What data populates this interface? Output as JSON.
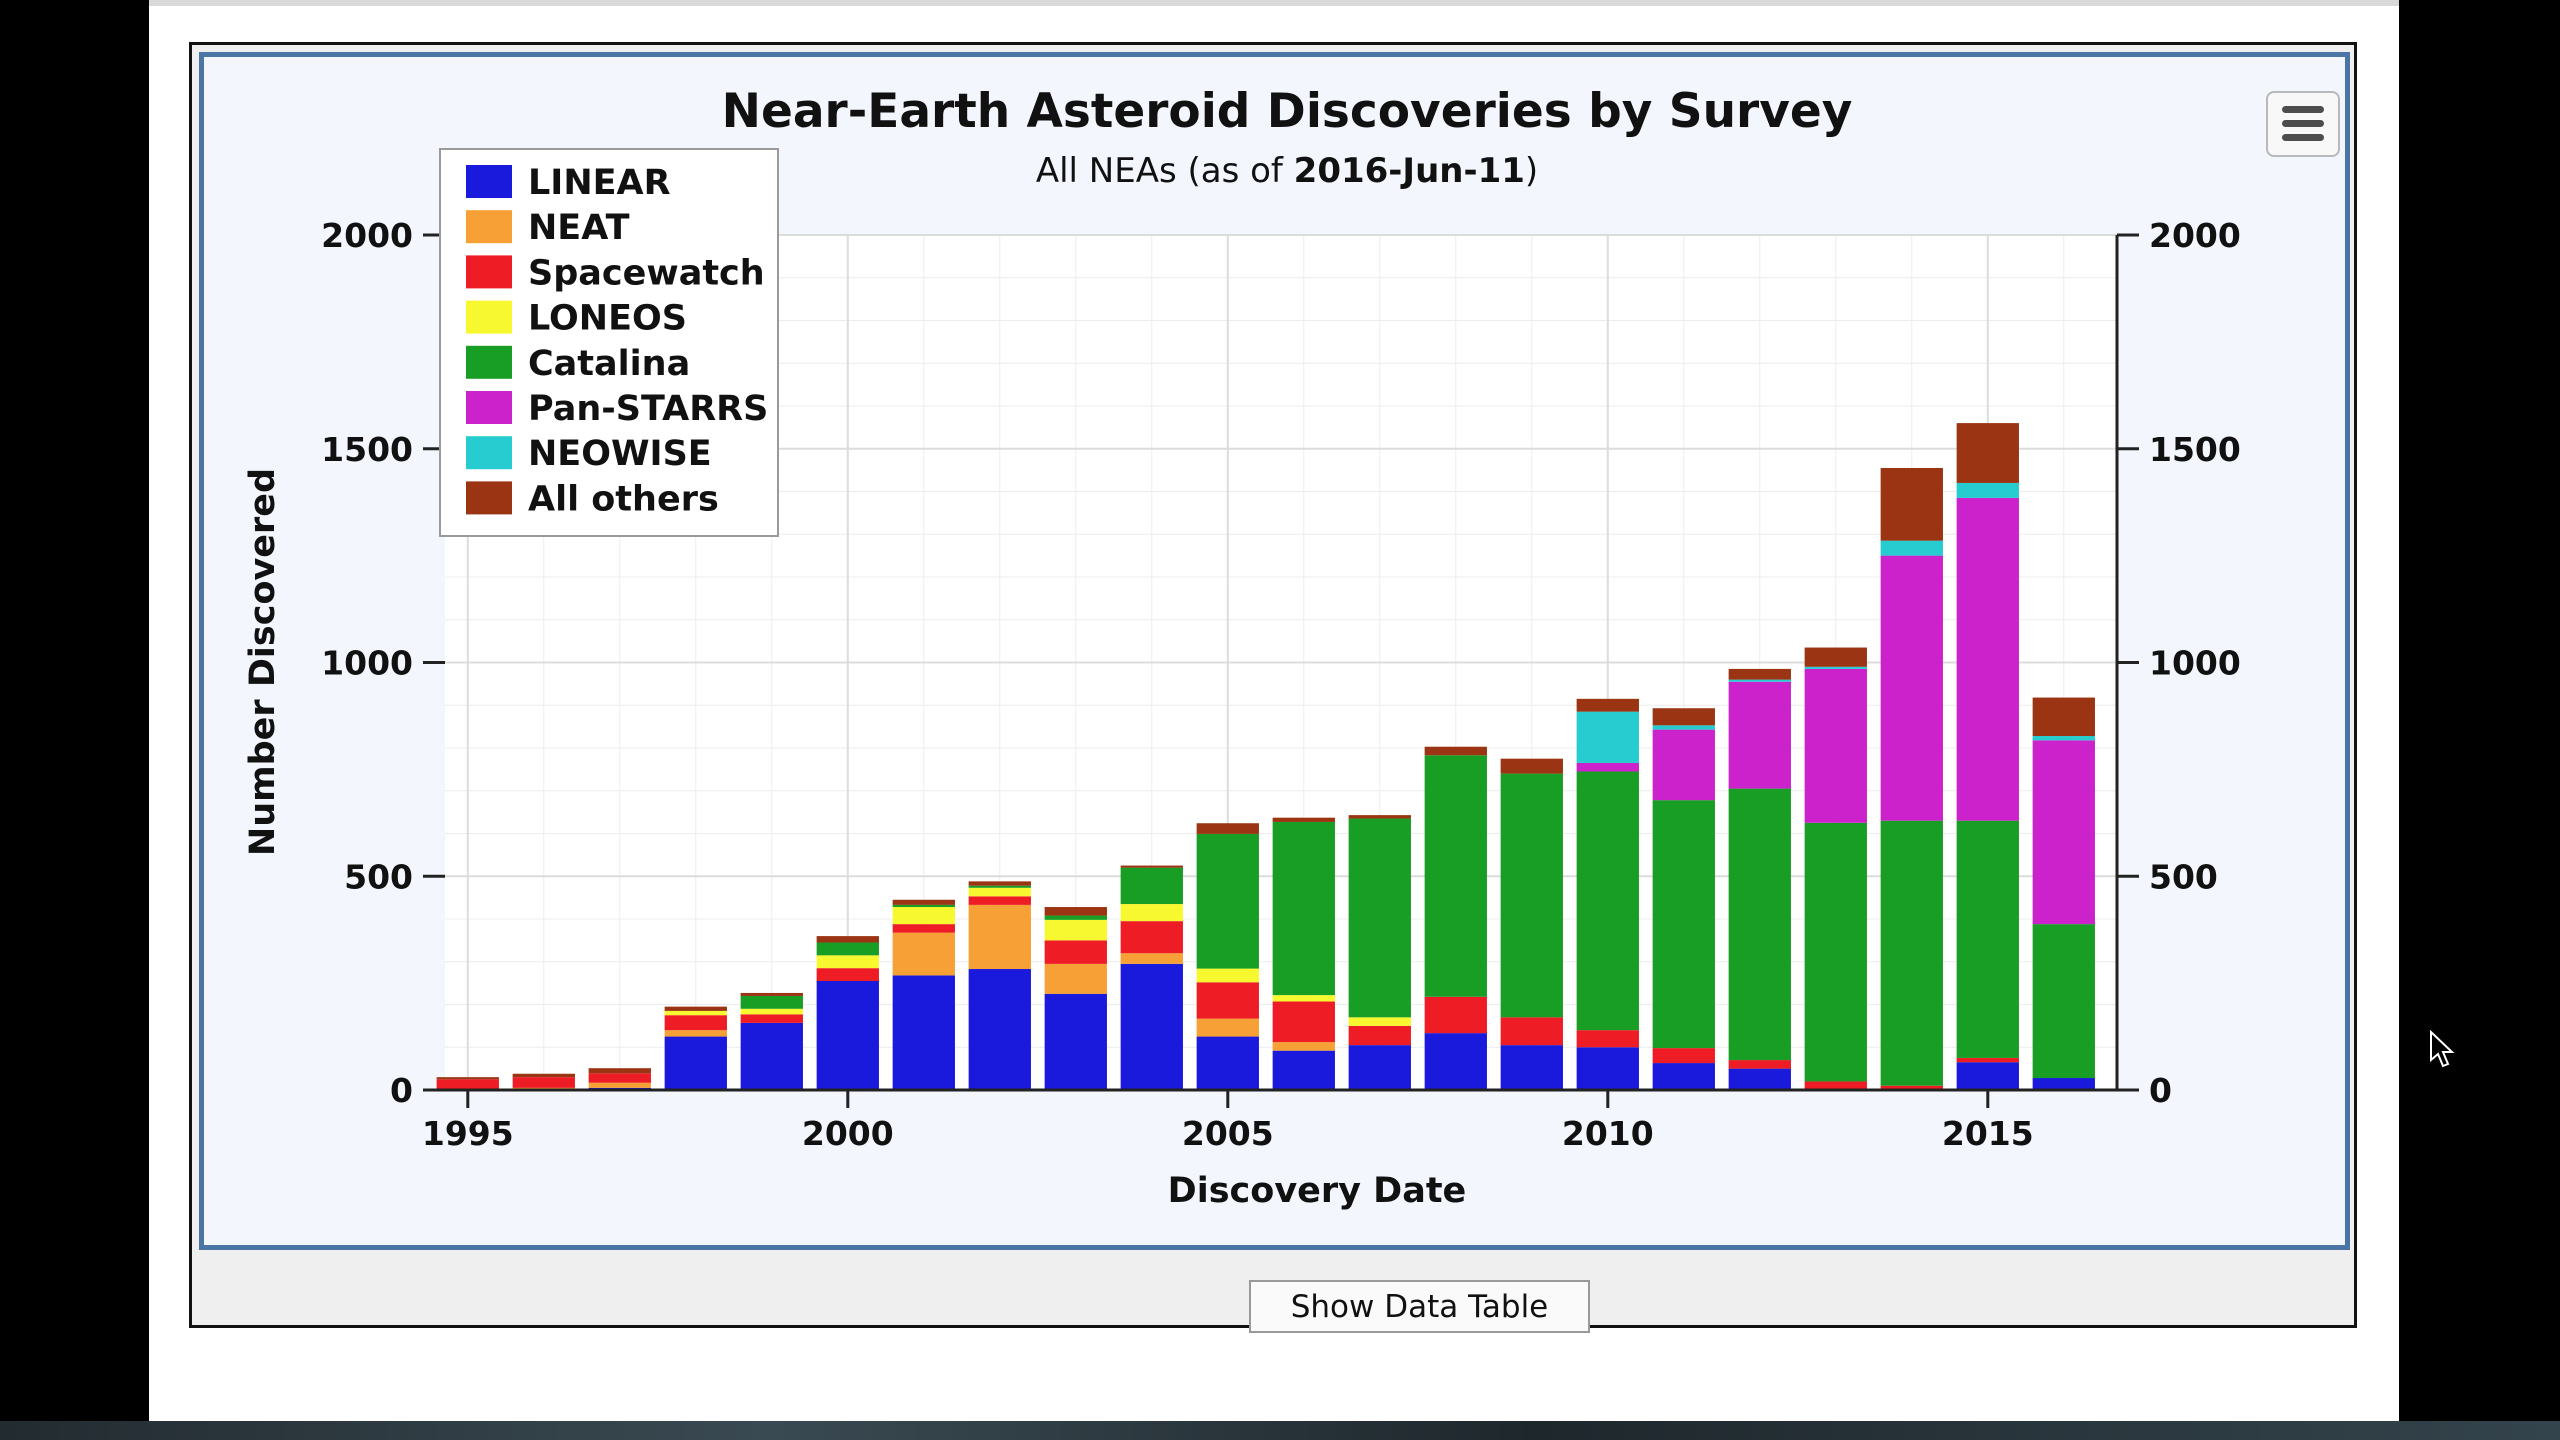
{
  "chart_data": {
    "type": "bar",
    "stacked": true,
    "title": "Near-Earth Asteroid Discoveries by Survey",
    "subtitle_prefix": "All NEAs (as of ",
    "subtitle_date": "2016-Jun-11",
    "subtitle_suffix": ")",
    "xlabel": "Discovery Date",
    "ylabel": "Number Discovered",
    "x": [
      1995,
      1996,
      1997,
      1998,
      1999,
      2000,
      2001,
      2002,
      2003,
      2004,
      2005,
      2006,
      2007,
      2008,
      2009,
      2010,
      2011,
      2012,
      2013,
      2014,
      2015,
      2016
    ],
    "x_ticks": [
      "1995",
      "2000",
      "2005",
      "2010",
      "2015"
    ],
    "x_range": [
      1994.7,
      2016.7
    ],
    "ylim": [
      0,
      2000
    ],
    "y_ticks": [
      "0",
      "500",
      "1000",
      "1500",
      "2000"
    ],
    "y_ticks_right": [
      "0",
      "500",
      "1000",
      "1500",
      "2000"
    ],
    "grid": true,
    "legend_position": "top-left",
    "series": [
      {
        "name": "LINEAR",
        "color": "#1a1adc",
        "values": [
          0,
          0,
          5,
          125,
          157,
          255,
          268,
          283,
          225,
          295,
          125,
          92,
          105,
          133,
          105,
          100,
          63,
          50,
          0,
          0,
          65,
          28
        ]
      },
      {
        "name": "NEAT",
        "color": "#f6a035",
        "values": [
          0,
          5,
          12,
          15,
          0,
          0,
          100,
          150,
          70,
          25,
          42,
          20,
          0,
          0,
          0,
          0,
          0,
          0,
          0,
          0,
          0,
          0
        ]
      },
      {
        "name": "Spacewatch",
        "color": "#ee1c24",
        "values": [
          25,
          25,
          22,
          35,
          20,
          30,
          20,
          20,
          55,
          75,
          85,
          95,
          45,
          85,
          65,
          40,
          35,
          20,
          20,
          10,
          10,
          0
        ]
      },
      {
        "name": "LONEOS",
        "color": "#f8f830",
        "values": [
          0,
          0,
          0,
          10,
          13,
          30,
          40,
          20,
          48,
          40,
          32,
          15,
          20,
          0,
          0,
          0,
          0,
          0,
          0,
          0,
          0,
          0
        ]
      },
      {
        "name": "Catalina",
        "color": "#189e24",
        "values": [
          0,
          0,
          0,
          0,
          30,
          30,
          5,
          5,
          10,
          85,
          315,
          405,
          465,
          565,
          570,
          605,
          580,
          635,
          605,
          620,
          555,
          360
        ]
      },
      {
        "name": "Pan-STARRS",
        "color": "#cc22cc",
        "values": [
          0,
          0,
          0,
          0,
          0,
          0,
          0,
          0,
          0,
          0,
          0,
          0,
          0,
          0,
          0,
          20,
          165,
          250,
          360,
          620,
          755,
          430
        ]
      },
      {
        "name": "NEOWISE",
        "color": "#26ccd0",
        "values": [
          0,
          0,
          0,
          0,
          0,
          0,
          0,
          0,
          0,
          0,
          0,
          0,
          0,
          0,
          0,
          120,
          10,
          5,
          5,
          35,
          35,
          10
        ]
      },
      {
        "name": "All others",
        "color": "#9a3412",
        "values": [
          5,
          8,
          12,
          10,
          7,
          15,
          12,
          10,
          20,
          5,
          25,
          10,
          8,
          20,
          35,
          30,
          40,
          25,
          45,
          170,
          140,
          90
        ]
      }
    ]
  },
  "toolbar": {
    "show_table_label": "Show Data Table",
    "menu_icon": "hamburger-menu-icon"
  },
  "colors": {
    "plot_bg": "#ffffff",
    "chart_border": "#4a75a5",
    "grid": "#e3e3e3"
  }
}
